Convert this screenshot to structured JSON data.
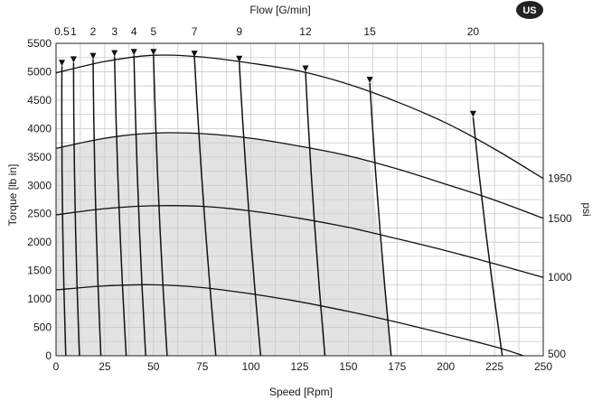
{
  "badge": "US",
  "chart_data": {
    "type": "line",
    "xlabel": "Speed [Rpm]",
    "ylabel": "Torque [lb in]",
    "top_axis_label": "Flow [G/min]",
    "right_axis_label": "psi",
    "xlim": [
      0,
      250
    ],
    "ylim": [
      0,
      5500
    ],
    "x_ticks": [
      0,
      25,
      50,
      75,
      100,
      125,
      150,
      175,
      200,
      225,
      250
    ],
    "y_ticks": [
      0,
      500,
      1000,
      1500,
      2000,
      2500,
      3000,
      3500,
      4000,
      4500,
      5000,
      5500
    ],
    "grid": true,
    "shaded_region": "continuous operating area",
    "pressure_curves": [
      {
        "name": "1950",
        "points": [
          [
            0,
            4980
          ],
          [
            25,
            5180
          ],
          [
            50,
            5290
          ],
          [
            75,
            5260
          ],
          [
            100,
            5150
          ],
          [
            125,
            5010
          ],
          [
            150,
            4780
          ],
          [
            175,
            4470
          ],
          [
            200,
            4100
          ],
          [
            225,
            3640
          ],
          [
            250,
            3120
          ]
        ]
      },
      {
        "name": "1500",
        "points": [
          [
            0,
            3650
          ],
          [
            25,
            3830
          ],
          [
            50,
            3920
          ],
          [
            75,
            3910
          ],
          [
            100,
            3830
          ],
          [
            125,
            3690
          ],
          [
            150,
            3520
          ],
          [
            175,
            3290
          ],
          [
            200,
            3020
          ],
          [
            225,
            2740
          ],
          [
            250,
            2420
          ]
        ]
      },
      {
        "name": "1000",
        "points": [
          [
            0,
            2480
          ],
          [
            25,
            2590
          ],
          [
            50,
            2640
          ],
          [
            75,
            2630
          ],
          [
            100,
            2550
          ],
          [
            125,
            2420
          ],
          [
            150,
            2260
          ],
          [
            175,
            2060
          ],
          [
            200,
            1850
          ],
          [
            225,
            1620
          ],
          [
            250,
            1380
          ]
        ]
      },
      {
        "name": "500",
        "points": [
          [
            0,
            1160
          ],
          [
            25,
            1230
          ],
          [
            50,
            1250
          ],
          [
            75,
            1200
          ],
          [
            100,
            1090
          ],
          [
            125,
            950
          ],
          [
            150,
            780
          ],
          [
            175,
            590
          ],
          [
            200,
            380
          ],
          [
            225,
            160
          ],
          [
            240,
            0
          ]
        ]
      }
    ],
    "flow_lines": [
      {
        "name": "0.5",
        "points": [
          [
            3,
            5100
          ],
          [
            5,
            0
          ]
        ]
      },
      {
        "name": "1",
        "points": [
          [
            9,
            5160
          ],
          [
            12,
            0
          ]
        ]
      },
      {
        "name": "2",
        "points": [
          [
            19,
            5220
          ],
          [
            23,
            0
          ]
        ]
      },
      {
        "name": "3",
        "points": [
          [
            30,
            5270
          ],
          [
            36,
            0
          ]
        ]
      },
      {
        "name": "4",
        "points": [
          [
            40,
            5290
          ],
          [
            46,
            0
          ]
        ]
      },
      {
        "name": "5",
        "points": [
          [
            50,
            5290
          ],
          [
            57,
            0
          ]
        ]
      },
      {
        "name": "7",
        "points": [
          [
            71,
            5260
          ],
          [
            82,
            0
          ]
        ]
      },
      {
        "name": "9",
        "points": [
          [
            94,
            5170
          ],
          [
            105,
            0
          ]
        ]
      },
      {
        "name": "12",
        "points": [
          [
            128,
            5000
          ],
          [
            138,
            0
          ]
        ]
      },
      {
        "name": "15",
        "points": [
          [
            161,
            4800
          ],
          [
            172,
            0
          ]
        ]
      },
      {
        "name": "20",
        "points": [
          [
            214,
            4200
          ],
          [
            229,
            0
          ]
        ]
      }
    ]
  }
}
